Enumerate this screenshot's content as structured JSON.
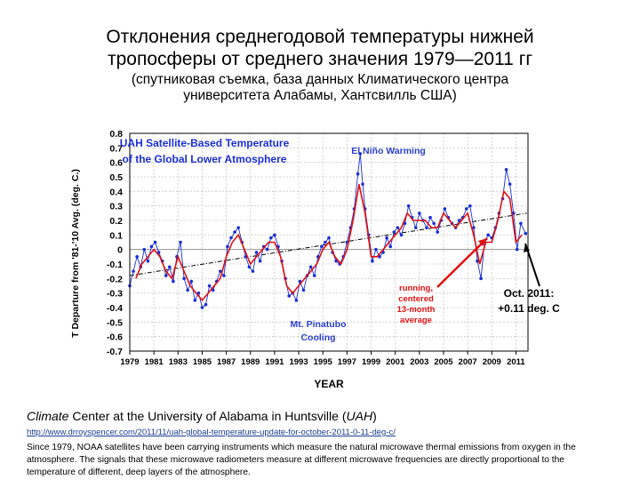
{
  "header": {
    "title_line1": "Отклонения среднегодовой температуры нижней",
    "title_line2": "тропосферы от среднего значения 1979—2011 гг",
    "subtitle_line1": "(спутниковая съемка, база данных Климатического центра",
    "subtitle_line2": "университета Алабамы, Хантсвилль США)"
  },
  "chart_data": {
    "type": "line",
    "title_line1": "UAH Satellite-Based Temperature",
    "title_line2": "of the Global Lower Atmosphere",
    "ylabel": "T Departure from '81-'10 Avg. (deg. C.)",
    "xlabel": "YEAR",
    "ylim": [
      -0.7,
      0.8
    ],
    "xlim": [
      1979,
      2012
    ],
    "yticks": [
      "0.8",
      "0.7",
      "0.6",
      "0.5",
      "0.4",
      "0.3",
      "0.2",
      "0.1",
      "0",
      "-0.1",
      "-0.2",
      "-0.3",
      "-0.4",
      "-0.5",
      "-0.6",
      "-0.7"
    ],
    "xticks": [
      "1979",
      "1981",
      "1983",
      "1985",
      "1987",
      "1989",
      "1991",
      "1993",
      "1995",
      "1997",
      "1999",
      "2001",
      "2003",
      "2005",
      "2007",
      "2009",
      "2011"
    ],
    "grid": true,
    "colors": {
      "monthly": "#1a2fd6",
      "running": "#e01010",
      "trend": "#000000",
      "title": "#1a2fd6",
      "annotation_blue": "#2a3fd0",
      "annotation_red": "#e01010"
    },
    "annotations": {
      "el_nino": "El Niño Warming",
      "pinatubo_line1": "Mt. Pinatubo",
      "pinatubo_line2": "Cooling",
      "running_line1": "running,",
      "running_line2": "centered",
      "running_line3": "13-month",
      "running_line4": "average",
      "oct_line1": "Oct. 2011:",
      "oct_line2": "+0.11 deg. C"
    },
    "running_average": {
      "x": [
        1979.5,
        1980.0,
        1980.5,
        1981.0,
        1981.5,
        1982.0,
        1982.5,
        1983.0,
        1983.5,
        1984.0,
        1984.5,
        1985.0,
        1985.5,
        1986.0,
        1986.5,
        1987.0,
        1987.5,
        1988.0,
        1988.5,
        1989.0,
        1989.5,
        1990.0,
        1990.5,
        1991.0,
        1991.5,
        1992.0,
        1992.5,
        1993.0,
        1993.5,
        1994.0,
        1994.5,
        1995.0,
        1995.5,
        1996.0,
        1996.5,
        1997.0,
        1997.5,
        1998.0,
        1998.5,
        1999.0,
        1999.5,
        2000.0,
        2000.5,
        2001.0,
        2001.5,
        2002.0,
        2002.5,
        2003.0,
        2003.5,
        2004.0,
        2004.5,
        2005.0,
        2005.5,
        2006.0,
        2006.5,
        2007.0,
        2007.5,
        2008.0,
        2008.5,
        2009.0,
        2009.5,
        2010.0,
        2010.5,
        2011.0,
        2011.5
      ],
      "y": [
        -0.2,
        -0.1,
        -0.05,
        0.0,
        -0.05,
        -0.15,
        -0.2,
        -0.05,
        -0.15,
        -0.25,
        -0.3,
        -0.35,
        -0.3,
        -0.25,
        -0.2,
        -0.05,
        0.05,
        0.1,
        0.0,
        -0.1,
        -0.05,
        0.0,
        0.05,
        0.05,
        -0.05,
        -0.25,
        -0.3,
        -0.25,
        -0.2,
        -0.15,
        -0.1,
        0.0,
        0.05,
        -0.05,
        -0.1,
        0.0,
        0.2,
        0.45,
        0.25,
        -0.05,
        -0.05,
        0.0,
        0.05,
        0.1,
        0.15,
        0.25,
        0.2,
        0.2,
        0.2,
        0.15,
        0.15,
        0.25,
        0.2,
        0.15,
        0.2,
        0.25,
        0.1,
        -0.1,
        0.05,
        0.05,
        0.2,
        0.4,
        0.35,
        0.05,
        0.1
      ]
    },
    "monthly": {
      "x": [
        1979.0,
        1979.3,
        1979.6,
        1979.9,
        1980.2,
        1980.5,
        1980.8,
        1981.1,
        1981.4,
        1981.7,
        1982.0,
        1982.3,
        1982.6,
        1982.9,
        1983.2,
        1983.5,
        1983.8,
        1984.1,
        1984.4,
        1984.7,
        1985.0,
        1985.3,
        1985.6,
        1985.9,
        1986.2,
        1986.5,
        1986.8,
        1987.1,
        1987.4,
        1987.7,
        1988.0,
        1988.3,
        1988.6,
        1988.9,
        1989.2,
        1989.5,
        1989.8,
        1990.1,
        1990.4,
        1990.7,
        1991.0,
        1991.3,
        1991.6,
        1991.9,
        1992.2,
        1992.5,
        1992.8,
        1993.1,
        1993.4,
        1993.7,
        1994.0,
        1994.3,
        1994.6,
        1994.9,
        1995.2,
        1995.5,
        1995.8,
        1996.1,
        1996.4,
        1996.7,
        1997.0,
        1997.3,
        1997.6,
        1997.9,
        1998.1,
        1998.3,
        1998.5,
        1998.8,
        1999.1,
        1999.4,
        1999.7,
        2000.0,
        2000.3,
        2000.6,
        2000.9,
        2001.2,
        2001.5,
        2001.8,
        2002.1,
        2002.4,
        2002.7,
        2003.0,
        2003.3,
        2003.6,
        2003.9,
        2004.2,
        2004.5,
        2004.8,
        2005.1,
        2005.4,
        2005.7,
        2006.0,
        2006.3,
        2006.6,
        2006.9,
        2007.2,
        2007.5,
        2007.8,
        2008.1,
        2008.4,
        2008.7,
        2009.0,
        2009.3,
        2009.6,
        2009.9,
        2010.2,
        2010.5,
        2010.8,
        2011.1,
        2011.4,
        2011.8
      ],
      "y": [
        -0.25,
        -0.15,
        -0.05,
        -0.12,
        0.0,
        -0.08,
        0.02,
        0.05,
        -0.02,
        -0.08,
        -0.18,
        -0.12,
        -0.22,
        -0.05,
        0.05,
        -0.2,
        -0.28,
        -0.22,
        -0.35,
        -0.3,
        -0.4,
        -0.38,
        -0.25,
        -0.28,
        -0.22,
        -0.15,
        -0.18,
        0.02,
        0.08,
        0.12,
        0.15,
        0.05,
        -0.05,
        -0.12,
        -0.15,
        -0.02,
        -0.08,
        0.02,
        0.0,
        0.08,
        0.1,
        0.02,
        -0.08,
        -0.2,
        -0.32,
        -0.3,
        -0.35,
        -0.22,
        -0.28,
        -0.18,
        -0.12,
        -0.18,
        -0.05,
        0.02,
        0.05,
        0.08,
        -0.02,
        -0.08,
        -0.1,
        -0.05,
        0.05,
        0.15,
        0.28,
        0.52,
        0.66,
        0.45,
        0.28,
        0.1,
        -0.08,
        0.0,
        -0.05,
        -0.02,
        0.08,
        0.02,
        0.12,
        0.15,
        0.1,
        0.18,
        0.3,
        0.22,
        0.15,
        0.25,
        0.2,
        0.15,
        0.22,
        0.18,
        0.12,
        0.2,
        0.28,
        0.22,
        0.18,
        0.15,
        0.2,
        0.22,
        0.28,
        0.3,
        0.15,
        -0.08,
        -0.2,
        0.05,
        0.1,
        0.08,
        0.15,
        0.25,
        0.35,
        0.55,
        0.45,
        0.25,
        0.0,
        0.18,
        0.11
      ]
    },
    "trend": {
      "x": [
        1979.0,
        2011.9
      ],
      "y": [
        -0.18,
        0.25
      ]
    }
  },
  "caption": {
    "part1": "Climate",
    "part2": " Center at the University of Alabama in Huntsville (",
    "part3": "UAH",
    "part4": ")",
    "link": "http://www.drroyspencer.com/2011/11/uah-global-temperature-update-for-october-2011-0-11-deg-c/",
    "description": "Since 1979, NOAA satellites have been carrying instruments which measure the natural microwave thermal emissions from oxygen in the atmosphere. The signals that these microwave radiometers measure at different microwave frequencies are directly proportional to the temperature of different, deep layers of the atmosphere."
  }
}
